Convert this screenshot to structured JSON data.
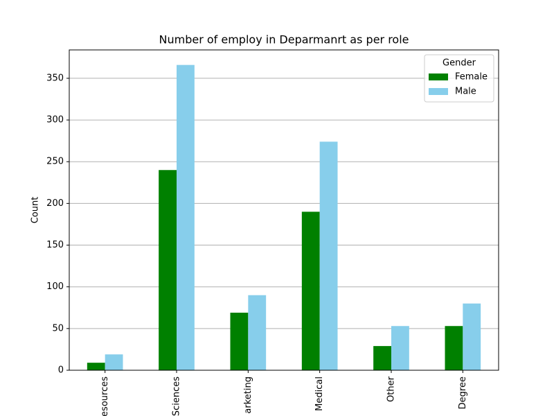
{
  "chart_data": {
    "type": "bar",
    "title": "Number of employ in Deparmanrt as per role",
    "y_label": "Count",
    "categories": [
      "esources",
      "Sciences",
      "arketing",
      "Medical",
      "Other",
      "Degree"
    ],
    "series": [
      {
        "name": "Female",
        "color": "#008000",
        "values": [
          9,
          240,
          69,
          190,
          29,
          53
        ]
      },
      {
        "name": "Male",
        "color": "#87ceeb",
        "values": [
          19,
          366,
          90,
          274,
          53,
          80
        ]
      }
    ],
    "ylim": [
      0,
      384
    ],
    "yticks": [
      0,
      50,
      100,
      150,
      200,
      250,
      300,
      350
    ],
    "grid": true,
    "legend_title": "Gender",
    "legend_position": "upper-right"
  }
}
